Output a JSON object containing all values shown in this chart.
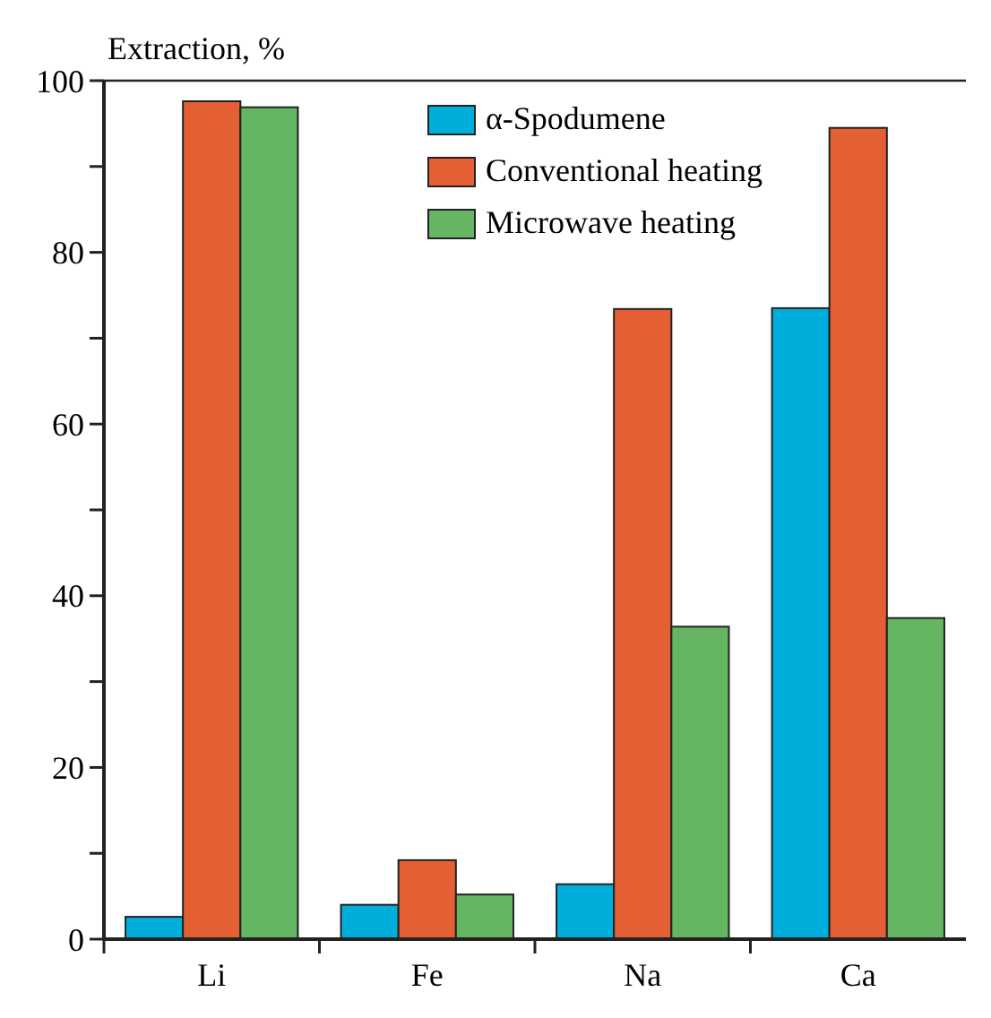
{
  "chart_data": {
    "type": "bar",
    "ylabel": "Extraction, %",
    "categories": [
      "Li",
      "Fe",
      "Na",
      "Ca"
    ],
    "series": [
      {
        "name": "α-Spodumene",
        "color": "#00aedc",
        "values": [
          2.6,
          4.0,
          6.4,
          73.5
        ]
      },
      {
        "name": "Conventional heating",
        "color": "#e45f33",
        "values": [
          97.6,
          9.2,
          73.4,
          94.5
        ]
      },
      {
        "name": "Microwave heating",
        "color": "#65b662",
        "values": [
          96.9,
          5.2,
          36.4,
          37.4
        ]
      }
    ],
    "ylim": [
      0,
      100
    ],
    "yticks": [
      0,
      {
        "value": 10,
        "label": null
      },
      20,
      {
        "value": 30,
        "label": null
      },
      40,
      {
        "value": 50,
        "label": null
      },
      60,
      {
        "value": 70,
        "label": null
      },
      80,
      {
        "value": 90,
        "label": null
      },
      100
    ],
    "legend": "top right",
    "grid": false
  }
}
